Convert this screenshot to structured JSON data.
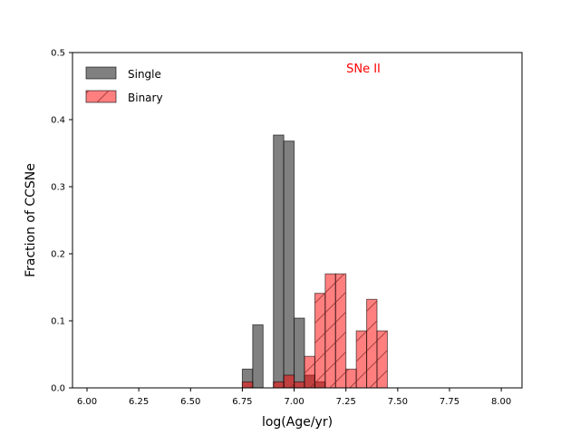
{
  "chart_data": {
    "type": "bar",
    "xlabel": "log(Age/yr)",
    "ylabel": "Fraction of CCSNe",
    "xlim": [
      5.93,
      8.1
    ],
    "ylim": [
      0,
      0.5
    ],
    "bin_width": 0.05,
    "xticks": [
      "6.00",
      "6.25",
      "6.50",
      "6.75",
      "7.00",
      "7.25",
      "7.50",
      "7.75",
      "8.00"
    ],
    "yticks": [
      "0.0",
      "0.1",
      "0.2",
      "0.3",
      "0.4",
      "0.5"
    ],
    "annotation": {
      "text": "SNe II",
      "color": "#ff0000"
    },
    "legend": {
      "location": "upper-left"
    },
    "series": [
      {
        "name": "Single",
        "color": "#808080",
        "hatch": "none",
        "bins": [
          {
            "x0": 6.75,
            "x1": 6.8,
            "value": 0.028
          },
          {
            "x0": 6.8,
            "x1": 6.85,
            "value": 0.094
          },
          {
            "x0": 6.85,
            "x1": 6.9,
            "value": 0.0
          },
          {
            "x0": 6.9,
            "x1": 6.95,
            "value": 0.377
          },
          {
            "x0": 6.95,
            "x1": 7.0,
            "value": 0.368
          },
          {
            "x0": 7.0,
            "x1": 7.05,
            "value": 0.104
          },
          {
            "x0": 7.05,
            "x1": 7.1,
            "value": 0.019
          },
          {
            "x0": 7.1,
            "x1": 7.15,
            "value": 0.009
          }
        ]
      },
      {
        "name": "Binary",
        "color": "#ff8080",
        "hatch": "diagonal",
        "bins": [
          {
            "x0": 6.75,
            "x1": 6.8,
            "value": 0.009
          },
          {
            "x0": 6.9,
            "x1": 6.95,
            "value": 0.009
          },
          {
            "x0": 6.95,
            "x1": 7.0,
            "value": 0.019
          },
          {
            "x0": 7.0,
            "x1": 7.05,
            "value": 0.009
          },
          {
            "x0": 7.05,
            "x1": 7.1,
            "value": 0.047
          },
          {
            "x0": 7.1,
            "x1": 7.15,
            "value": 0.141
          },
          {
            "x0": 7.15,
            "x1": 7.2,
            "value": 0.17
          },
          {
            "x0": 7.2,
            "x1": 7.25,
            "value": 0.17
          },
          {
            "x0": 7.25,
            "x1": 7.3,
            "value": 0.028
          },
          {
            "x0": 7.3,
            "x1": 7.35,
            "value": 0.085
          },
          {
            "x0": 7.35,
            "x1": 7.4,
            "value": 0.132
          },
          {
            "x0": 7.4,
            "x1": 7.45,
            "value": 0.085
          }
        ]
      }
    ]
  }
}
